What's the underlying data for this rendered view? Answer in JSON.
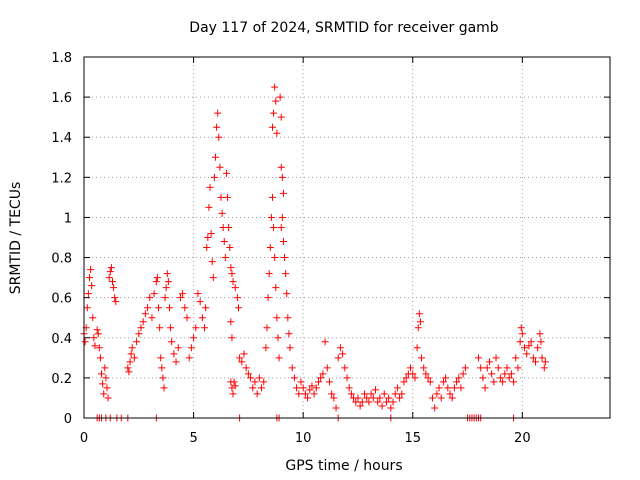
{
  "chart_data": {
    "type": "scatter",
    "title": "Day 117 of 2024, SRMTID for receiver gamb",
    "xlabel": "GPS time / hours",
    "ylabel": "SRMTID / TECUs",
    "xlim": [
      0,
      24
    ],
    "ylim": [
      0,
      1.8
    ],
    "xticks": [
      0,
      5,
      10,
      15,
      20
    ],
    "xtick_labels": [
      "0",
      "5",
      "10",
      "15",
      "20"
    ],
    "yticks": [
      0,
      0.2,
      0.4,
      0.6,
      0.8,
      1,
      1.2,
      1.4,
      1.6,
      1.8
    ],
    "ytick_labels": [
      "0",
      "0.2",
      "0.4",
      "0.6",
      "0.8",
      "1",
      "1.2",
      "1.4",
      "1.6",
      "1.8"
    ],
    "grid": true,
    "marker": "+",
    "color": "#ff0000",
    "series": [
      {
        "name": "SRMTID",
        "points": [
          [
            0.0,
            0.42
          ],
          [
            0.05,
            0.38
          ],
          [
            0.1,
            0.45
          ],
          [
            0.15,
            0.55
          ],
          [
            0.2,
            0.62
          ],
          [
            0.25,
            0.7
          ],
          [
            0.3,
            0.74
          ],
          [
            0.35,
            0.66
          ],
          [
            0.4,
            0.5
          ],
          [
            0.45,
            0.4
          ],
          [
            0.5,
            0.36
          ],
          [
            0.6,
            0.44
          ],
          [
            0.65,
            0.42
          ],
          [
            0.7,
            0.35
          ],
          [
            0.75,
            0.3
          ],
          [
            0.8,
            0.22
          ],
          [
            0.85,
            0.17
          ],
          [
            0.9,
            0.12
          ],
          [
            0.95,
            0.25
          ],
          [
            1.0,
            0.2
          ],
          [
            1.05,
            0.15
          ],
          [
            1.1,
            0.1
          ],
          [
            1.15,
            0.7
          ],
          [
            1.2,
            0.73
          ],
          [
            1.25,
            0.75
          ],
          [
            1.3,
            0.68
          ],
          [
            1.35,
            0.65
          ],
          [
            1.4,
            0.6
          ],
          [
            1.45,
            0.58
          ],
          [
            2.0,
            0.25
          ],
          [
            2.05,
            0.23
          ],
          [
            2.1,
            0.28
          ],
          [
            2.15,
            0.32
          ],
          [
            2.2,
            0.35
          ],
          [
            2.3,
            0.3
          ],
          [
            2.4,
            0.38
          ],
          [
            2.5,
            0.42
          ],
          [
            2.6,
            0.45
          ],
          [
            2.7,
            0.48
          ],
          [
            2.8,
            0.52
          ],
          [
            2.9,
            0.55
          ],
          [
            3.0,
            0.6
          ],
          [
            3.1,
            0.5
          ],
          [
            3.2,
            0.62
          ],
          [
            3.3,
            0.68
          ],
          [
            3.35,
            0.7
          ],
          [
            3.4,
            0.55
          ],
          [
            3.45,
            0.45
          ],
          [
            3.5,
            0.3
          ],
          [
            3.55,
            0.25
          ],
          [
            3.6,
            0.2
          ],
          [
            3.65,
            0.15
          ],
          [
            3.7,
            0.6
          ],
          [
            3.75,
            0.65
          ],
          [
            3.8,
            0.72
          ],
          [
            3.85,
            0.68
          ],
          [
            3.9,
            0.55
          ],
          [
            3.95,
            0.45
          ],
          [
            4.0,
            0.38
          ],
          [
            4.1,
            0.32
          ],
          [
            4.2,
            0.28
          ],
          [
            4.3,
            0.35
          ],
          [
            4.4,
            0.6
          ],
          [
            4.5,
            0.62
          ],
          [
            4.6,
            0.55
          ],
          [
            4.7,
            0.5
          ],
          [
            4.8,
            0.3
          ],
          [
            4.9,
            0.35
          ],
          [
            5.0,
            0.4
          ],
          [
            5.1,
            0.45
          ],
          [
            5.2,
            0.62
          ],
          [
            5.3,
            0.58
          ],
          [
            5.4,
            0.5
          ],
          [
            5.5,
            0.45
          ],
          [
            5.55,
            0.55
          ],
          [
            5.6,
            0.85
          ],
          [
            5.65,
            0.9
          ],
          [
            5.7,
            1.05
          ],
          [
            5.75,
            1.15
          ],
          [
            5.8,
            0.92
          ],
          [
            5.85,
            0.78
          ],
          [
            5.9,
            0.7
          ],
          [
            5.95,
            1.2
          ],
          [
            6.0,
            1.3
          ],
          [
            6.05,
            1.45
          ],
          [
            6.1,
            1.52
          ],
          [
            6.15,
            1.4
          ],
          [
            6.2,
            1.25
          ],
          [
            6.25,
            1.1
          ],
          [
            6.3,
            1.02
          ],
          [
            6.35,
            0.95
          ],
          [
            6.4,
            0.88
          ],
          [
            6.45,
            0.8
          ],
          [
            6.5,
            1.22
          ],
          [
            6.55,
            1.1
          ],
          [
            6.6,
            0.95
          ],
          [
            6.65,
            0.85
          ],
          [
            6.7,
            0.75
          ],
          [
            6.75,
            0.72
          ],
          [
            6.8,
            0.68
          ],
          [
            6.9,
            0.65
          ],
          [
            7.0,
            0.6
          ],
          [
            7.05,
            0.55
          ],
          [
            6.7,
            0.48
          ],
          [
            6.75,
            0.4
          ],
          [
            6.7,
            0.18
          ],
          [
            6.75,
            0.15
          ],
          [
            6.8,
            0.12
          ],
          [
            6.85,
            0.18
          ],
          [
            6.9,
            0.16
          ],
          [
            7.1,
            0.3
          ],
          [
            7.2,
            0.28
          ],
          [
            7.3,
            0.32
          ],
          [
            7.4,
            0.25
          ],
          [
            7.5,
            0.22
          ],
          [
            7.6,
            0.2
          ],
          [
            7.7,
            0.15
          ],
          [
            7.8,
            0.18
          ],
          [
            7.9,
            0.12
          ],
          [
            8.0,
            0.2
          ],
          [
            8.1,
            0.15
          ],
          [
            8.2,
            0.18
          ],
          [
            8.3,
            0.35
          ],
          [
            8.35,
            0.45
          ],
          [
            8.4,
            0.6
          ],
          [
            8.45,
            0.72
          ],
          [
            8.5,
            0.85
          ],
          [
            8.55,
            1.0
          ],
          [
            8.6,
            1.1
          ],
          [
            8.65,
            0.95
          ],
          [
            8.7,
            0.8
          ],
          [
            8.75,
            0.65
          ],
          [
            8.8,
            0.5
          ],
          [
            8.85,
            0.4
          ],
          [
            8.9,
            0.3
          ],
          [
            8.6,
            1.45
          ],
          [
            8.65,
            1.52
          ],
          [
            8.7,
            1.65
          ],
          [
            8.75,
            1.58
          ],
          [
            8.8,
            1.42
          ],
          [
            8.95,
            1.6
          ],
          [
            9.0,
            1.5
          ],
          [
            9.0,
            1.25
          ],
          [
            9.05,
            1.2
          ],
          [
            9.1,
            1.12
          ],
          [
            9.05,
            1.0
          ],
          [
            9.0,
            0.95
          ],
          [
            9.1,
            0.88
          ],
          [
            9.15,
            0.8
          ],
          [
            9.2,
            0.72
          ],
          [
            9.25,
            0.62
          ],
          [
            9.3,
            0.5
          ],
          [
            9.35,
            0.42
          ],
          [
            9.4,
            0.35
          ],
          [
            9.5,
            0.25
          ],
          [
            9.6,
            0.2
          ],
          [
            9.7,
            0.15
          ],
          [
            9.8,
            0.12
          ],
          [
            9.9,
            0.18
          ],
          [
            10.0,
            0.15
          ],
          [
            10.1,
            0.12
          ],
          [
            10.2,
            0.1
          ],
          [
            10.3,
            0.14
          ],
          [
            10.4,
            0.16
          ],
          [
            10.5,
            0.12
          ],
          [
            10.6,
            0.15
          ],
          [
            10.7,
            0.18
          ],
          [
            10.8,
            0.2
          ],
          [
            10.9,
            0.22
          ],
          [
            11.0,
            0.38
          ],
          [
            11.1,
            0.25
          ],
          [
            11.2,
            0.18
          ],
          [
            11.3,
            0.12
          ],
          [
            11.4,
            0.1
          ],
          [
            11.5,
            0.05
          ],
          [
            11.6,
            0.3
          ],
          [
            11.7,
            0.35
          ],
          [
            11.8,
            0.32
          ],
          [
            11.9,
            0.25
          ],
          [
            12.0,
            0.2
          ],
          [
            12.1,
            0.15
          ],
          [
            12.2,
            0.12
          ],
          [
            12.3,
            0.1
          ],
          [
            12.4,
            0.08
          ],
          [
            12.5,
            0.1
          ],
          [
            12.6,
            0.06
          ],
          [
            12.7,
            0.08
          ],
          [
            12.8,
            0.12
          ],
          [
            12.9,
            0.1
          ],
          [
            13.0,
            0.08
          ],
          [
            13.1,
            0.12
          ],
          [
            13.2,
            0.1
          ],
          [
            13.3,
            0.14
          ],
          [
            13.4,
            0.08
          ],
          [
            13.5,
            0.1
          ],
          [
            13.6,
            0.06
          ],
          [
            13.7,
            0.12
          ],
          [
            13.8,
            0.08
          ],
          [
            13.9,
            0.1
          ],
          [
            14.0,
            0.05
          ],
          [
            14.1,
            0.08
          ],
          [
            14.2,
            0.12
          ],
          [
            14.3,
            0.15
          ],
          [
            14.4,
            0.1
          ],
          [
            14.5,
            0.12
          ],
          [
            14.6,
            0.18
          ],
          [
            14.7,
            0.2
          ],
          [
            14.8,
            0.22
          ],
          [
            14.9,
            0.25
          ],
          [
            15.0,
            0.22
          ],
          [
            15.1,
            0.2
          ],
          [
            15.2,
            0.35
          ],
          [
            15.25,
            0.45
          ],
          [
            15.3,
            0.52
          ],
          [
            15.35,
            0.48
          ],
          [
            15.4,
            0.3
          ],
          [
            15.5,
            0.25
          ],
          [
            15.6,
            0.22
          ],
          [
            15.7,
            0.2
          ],
          [
            15.8,
            0.18
          ],
          [
            15.9,
            0.1
          ],
          [
            16.0,
            0.05
          ],
          [
            16.1,
            0.12
          ],
          [
            16.2,
            0.15
          ],
          [
            16.3,
            0.1
          ],
          [
            16.4,
            0.18
          ],
          [
            16.5,
            0.2
          ],
          [
            16.6,
            0.15
          ],
          [
            16.7,
            0.12
          ],
          [
            16.8,
            0.1
          ],
          [
            16.9,
            0.15
          ],
          [
            17.0,
            0.18
          ],
          [
            17.1,
            0.2
          ],
          [
            17.2,
            0.15
          ],
          [
            17.3,
            0.22
          ],
          [
            17.4,
            0.25
          ],
          [
            18.0,
            0.3
          ],
          [
            18.1,
            0.25
          ],
          [
            18.2,
            0.2
          ],
          [
            18.3,
            0.15
          ],
          [
            18.4,
            0.25
          ],
          [
            18.5,
            0.28
          ],
          [
            18.6,
            0.22
          ],
          [
            18.7,
            0.18
          ],
          [
            18.8,
            0.3
          ],
          [
            18.9,
            0.25
          ],
          [
            19.0,
            0.2
          ],
          [
            19.1,
            0.18
          ],
          [
            19.2,
            0.22
          ],
          [
            19.3,
            0.25
          ],
          [
            19.4,
            0.2
          ],
          [
            19.5,
            0.22
          ],
          [
            19.6,
            0.18
          ],
          [
            19.7,
            0.3
          ],
          [
            19.8,
            0.25
          ],
          [
            19.9,
            0.38
          ],
          [
            19.95,
            0.45
          ],
          [
            20.0,
            0.42
          ],
          [
            20.1,
            0.35
          ],
          [
            20.2,
            0.32
          ],
          [
            20.3,
            0.36
          ],
          [
            20.4,
            0.38
          ],
          [
            20.5,
            0.3
          ],
          [
            20.6,
            0.28
          ],
          [
            20.7,
            0.35
          ],
          [
            20.8,
            0.42
          ],
          [
            20.85,
            0.38
          ],
          [
            20.9,
            0.3
          ],
          [
            21.0,
            0.25
          ],
          [
            21.05,
            0.28
          ],
          [
            0.6,
            0.0
          ],
          [
            0.7,
            0.0
          ],
          [
            0.8,
            0.0
          ],
          [
            1.0,
            0.0
          ],
          [
            1.2,
            0.0
          ],
          [
            1.5,
            0.0
          ],
          [
            1.7,
            0.0
          ],
          [
            2.0,
            0.0
          ],
          [
            3.3,
            0.0
          ],
          [
            7.1,
            0.0
          ],
          [
            8.8,
            0.0
          ],
          [
            8.9,
            0.0
          ],
          [
            11.6,
            0.0
          ],
          [
            14.0,
            0.0
          ],
          [
            17.5,
            0.0
          ],
          [
            17.6,
            0.0
          ],
          [
            17.7,
            0.0
          ],
          [
            17.8,
            0.0
          ],
          [
            17.9,
            0.0
          ],
          [
            18.0,
            0.0
          ],
          [
            18.1,
            0.0
          ],
          [
            19.6,
            0.0
          ]
        ]
      }
    ]
  }
}
